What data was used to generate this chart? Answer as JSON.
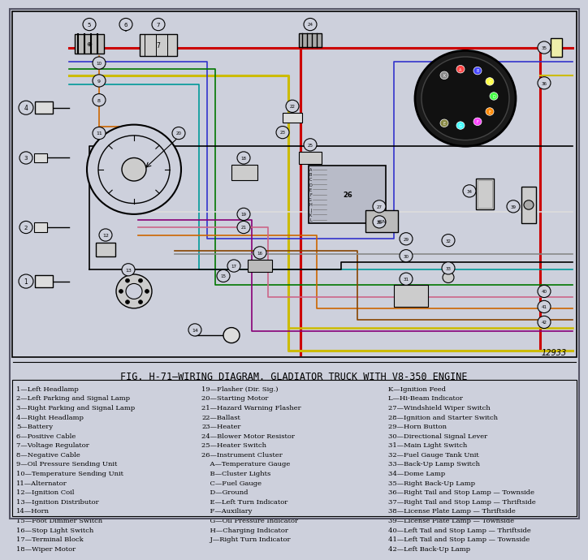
{
  "title": "FIG. H-71—WIRING DIAGRAM. GLADIATOR TRUCK WITH V8-350 ENGINE",
  "background_color": "#cdd0dc",
  "legend_col1": [
    "1—Left Headlamp",
    "2—Left Parking and Signal Lamp",
    "3—Right Parking and Signal Lamp",
    "4—Right Headlamp",
    "5—Battery",
    "6—Positive Cable",
    "7—Voltage Regulator",
    "8—Negative Cable",
    "9—Oil Pressure Sending Unit",
    "10—Temperature Sending Unit",
    "11—Alternator",
    "12—Ignition Coil",
    "13—Ignition Distributor",
    "14—Horn",
    "15—Foot Dimmer Switch",
    "16—Stop Light Switch",
    "17—Terminal Block",
    "18—Wiper Motor"
  ],
  "legend_col2": [
    "19—Flasher (Dir. Sig.)",
    "20—Starting Motor",
    "21—Hazard Warning Flasher",
    "22—Ballast",
    "23—Heater",
    "24—Blower Motor Resistor",
    "25—Heater Switch",
    "26—Instrument Cluster",
    "    A—Temperature Gauge",
    "    B—Cluster Lights",
    "    C—Fuel Gauge",
    "    D—Ground",
    "    E—Left Turn Indicator",
    "    F—Auxiliary",
    "    G—Oil Pressure Indicator",
    "    H—Charging Indicator",
    "    J—Right Turn Indicator"
  ],
  "legend_col3": [
    "K—Ignition Feed",
    "L—Hi-Beam Indicator",
    "27—Windshield Wiper Switch",
    "28—Ignition and Starter Switch",
    "29—Horn Button",
    "30—Directional Signal Lever",
    "31—Main Light Switch",
    "32—Fuel Gauge Tank Unit",
    "33—Back-Up Lamp Switch",
    "34—Dome Lamp",
    "35—Right Back-Up Lamp",
    "36—Right Tail and Stop Lamp — Townside",
    "37—Right Tail and Stop Lamp — Thriftside",
    "38—License Plate Lamp — Thriftside",
    "39—License Plate Lamp — Townside",
    "40—Left Tail and Stop Lamp — Thriftside",
    "41—Left Tail and Stop Lamp — Townside",
    "42—Left Back-Up Lamp"
  ],
  "fig_number": "12933",
  "wire_colors": {
    "red": "#cc0000",
    "blue": "#3333cc",
    "yellow": "#ccbb00",
    "green": "#007700",
    "black": "#222222",
    "orange": "#cc6600",
    "cyan": "#009999",
    "purple": "#880077",
    "pink": "#cc6688",
    "brown": "#884400",
    "gray": "#888888",
    "white": "#dddddd"
  }
}
